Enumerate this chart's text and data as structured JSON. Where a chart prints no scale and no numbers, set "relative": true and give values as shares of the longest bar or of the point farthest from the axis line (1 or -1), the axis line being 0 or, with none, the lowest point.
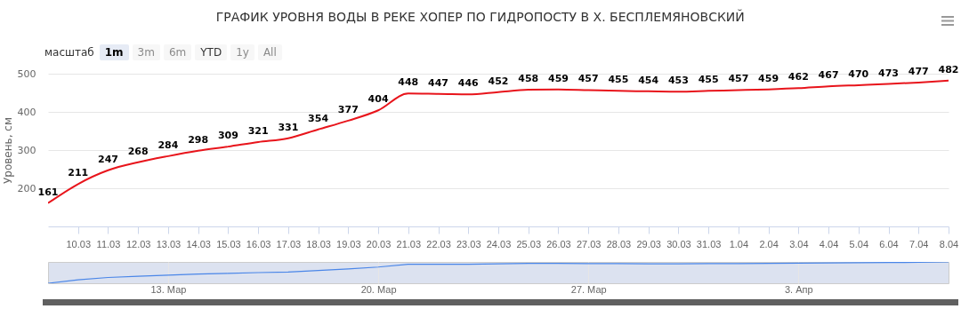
{
  "chart_data": [
    {
      "type": "line",
      "title": "ГРАФИК УРОВНЯ ВОДЫ В РЕКЕ ХОПЕР ПО ГИДРОПОСТУ В Х. БЕСПЛЕМЯНОВСКИЙ",
      "ylabel": "Уровень, см",
      "annotations": [
        "масштаб",
        "1m",
        "3m",
        "6m",
        "YTD",
        "1y",
        "All"
      ],
      "x": [
        "--03-09",
        "--03-10",
        "--03-11",
        "--03-12",
        "--03-13",
        "--03-14",
        "--03-15",
        "--03-16",
        "--03-17",
        "--03-18",
        "--03-19",
        "--03-20",
        "--03-21",
        "--03-22",
        "--03-23",
        "--03-24",
        "--03-25",
        "--03-26",
        "--03-27",
        "--03-28",
        "--03-29",
        "--03-30",
        "--03-31",
        "--04-01",
        "--04-02",
        "--04-03",
        "--04-04",
        "--04-05",
        "--04-06",
        "--04-07",
        "--04-08"
      ],
      "series": [
        {
          "color": "#e8141b",
          "values": [
            161,
            211,
            247,
            268,
            284,
            298,
            309,
            321,
            331,
            354,
            377,
            404,
            448,
            447,
            446,
            452,
            458,
            459,
            457,
            455,
            454,
            453,
            455,
            457,
            459,
            462,
            467,
            470,
            473,
            477,
            482
          ]
        }
      ],
      "data_labels": true,
      "ylim": [
        100,
        500
      ],
      "yticks": [
        200,
        300,
        400,
        500
      ],
      "xlim": [
        "--03-09",
        "--04-08"
      ],
      "xticks": [
        {
          "value": "--03-10",
          "label": "10.03"
        },
        {
          "value": "--03-11",
          "label": "11.03"
        },
        {
          "value": "--03-12",
          "label": "12.03"
        },
        {
          "value": "--03-13",
          "label": "13.03"
        },
        {
          "value": "--03-14",
          "label": "14.03"
        },
        {
          "value": "--03-15",
          "label": "15.03"
        },
        {
          "value": "--03-16",
          "label": "16.03"
        },
        {
          "value": "--03-17",
          "label": "17.03"
        },
        {
          "value": "--03-18",
          "label": "18.03"
        },
        {
          "value": "--03-19",
          "label": "19.03"
        },
        {
          "value": "--03-20",
          "label": "20.03"
        },
        {
          "value": "--03-21",
          "label": "21.03"
        },
        {
          "value": "--03-22",
          "label": "22.03"
        },
        {
          "value": "--03-23",
          "label": "23.03"
        },
        {
          "value": "--03-24",
          "label": "24.03"
        },
        {
          "value": "--03-25",
          "label": "25.03"
        },
        {
          "value": "--03-26",
          "label": "26.03"
        },
        {
          "value": "--03-27",
          "label": "27.03"
        },
        {
          "value": "--03-28",
          "label": "28.03"
        },
        {
          "value": "--03-29",
          "label": "29.03"
        },
        {
          "value": "--03-30",
          "label": "30.03"
        },
        {
          "value": "--03-31",
          "label": "31.03"
        },
        {
          "value": "--04-01",
          "label": "1.04"
        },
        {
          "value": "--04-02",
          "label": "2.04"
        },
        {
          "value": "--04-03",
          "label": "3.04"
        },
        {
          "value": "--04-04",
          "label": "4.04"
        },
        {
          "value": "--04-05",
          "label": "5.04"
        },
        {
          "value": "--04-06",
          "label": "6.04"
        },
        {
          "value": "--04-07",
          "label": "7.04"
        },
        {
          "value": "--04-08",
          "label": "8.04"
        }
      ],
      "grid": "y",
      "marker": "none",
      "line_style": "solid",
      "legend": false
    },
    {
      "type": "line",
      "relative": true,
      "x": [
        "--03-09",
        "--03-10",
        "--03-11",
        "--03-12",
        "--03-13",
        "--03-14",
        "--03-15",
        "--03-16",
        "--03-17",
        "--03-18",
        "--03-19",
        "--03-20",
        "--03-21",
        "--03-22",
        "--03-23",
        "--03-24",
        "--03-25",
        "--03-26",
        "--03-27",
        "--03-28",
        "--03-29",
        "--03-30",
        "--03-31",
        "--04-01",
        "--04-02",
        "--04-03",
        "--04-04",
        "--04-05",
        "--04-06",
        "--04-07",
        "--04-08"
      ],
      "series": [
        {
          "color": "#4a86e8",
          "values": [
            0,
            0.16,
            0.27,
            0.33,
            0.38,
            0.43,
            0.46,
            0.5,
            0.53,
            0.6,
            0.67,
            0.76,
            0.89,
            0.89,
            0.89,
            0.91,
            0.93,
            0.93,
            0.92,
            0.92,
            0.91,
            0.91,
            0.92,
            0.92,
            0.93,
            0.94,
            0.95,
            0.96,
            0.97,
            0.98,
            1
          ]
        }
      ],
      "xlim": [
        "--03-09",
        "--04-08"
      ],
      "xticks": [
        {
          "value": "--03-13",
          "label": "13. Мар"
        },
        {
          "value": "--03-20",
          "label": "20. Мар"
        },
        {
          "value": "--03-27",
          "label": "27. Мар"
        },
        {
          "value": "--04-03",
          "label": "3. Апр"
        }
      ],
      "tick_labels": "x",
      "grid": "x",
      "legend": false
    }
  ]
}
